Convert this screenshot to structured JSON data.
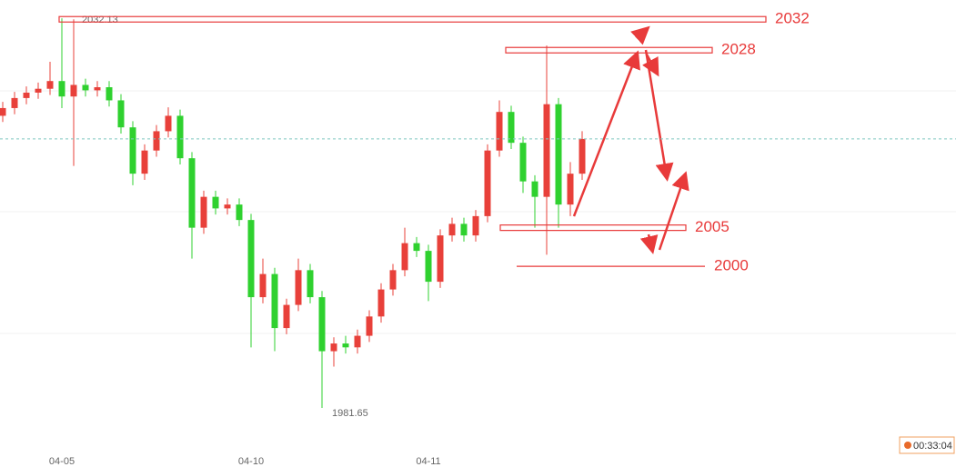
{
  "chart_data": {
    "type": "candlestick",
    "categories": [
      null,
      null,
      null,
      null,
      null,
      "04-05",
      null,
      null,
      null,
      null,
      null,
      null,
      null,
      null,
      null,
      null,
      null,
      null,
      null,
      null,
      null,
      "04-10",
      null,
      null,
      null,
      null,
      null,
      null,
      null,
      null,
      null,
      null,
      null,
      null,
      null,
      null,
      "04-11",
      null,
      null,
      null,
      null,
      null,
      null,
      null,
      null,
      null,
      null,
      null,
      null,
      null
    ],
    "open": [
      2019.5,
      2020.5,
      2021.8,
      2022.5,
      2023.0,
      2024.0,
      2022.0,
      2023.5,
      2022.8,
      2023.2,
      2021.5,
      2018.0,
      2012.0,
      2015.0,
      2017.5,
      2019.5,
      2014.0,
      2005.0,
      2009.0,
      2007.5,
      2008.0,
      2006.0,
      1996.0,
      1999.0,
      1992.0,
      1995.0,
      1999.5,
      1996.0,
      1989.0,
      1990.0,
      1989.5,
      1991.0,
      1993.5,
      1997.0,
      1999.5,
      2003.0,
      2002.0,
      1998.0,
      2004.0,
      2005.5,
      2004.0,
      2006.5,
      2015.0,
      2020.0,
      2016.0,
      2011.0,
      2009.0,
      2021.0,
      2008.0,
      2012.0
    ],
    "high": [
      2021.3,
      2022.6,
      2023.3,
      2023.8,
      2026.5,
      2032.13,
      2032.0,
      2024.3,
      2024.0,
      2024.0,
      2022.3,
      2018.8,
      2015.8,
      2018.3,
      2020.6,
      2020.3,
      2014.8,
      2009.8,
      2009.8,
      2008.8,
      2008.8,
      2006.8,
      2001.0,
      1999.8,
      1995.8,
      2001.0,
      2000.3,
      1996.8,
      1990.8,
      1991.0,
      1991.8,
      1994.3,
      1997.8,
      2000.3,
      2005.0,
      2003.8,
      2002.8,
      2004.8,
      2006.3,
      2006.3,
      2007.3,
      2015.8,
      2021.5,
      2020.8,
      2016.8,
      2011.8,
      2028.6,
      2021.8,
      2013.5,
      2017.5
    ],
    "low": [
      2018.7,
      2019.7,
      2021.0,
      2021.7,
      2022.2,
      2020.5,
      2013.0,
      2022.0,
      2022.0,
      2020.7,
      2017.2,
      2010.5,
      2011.2,
      2014.2,
      2016.7,
      2013.2,
      2001.0,
      2004.2,
      2006.7,
      2006.7,
      2005.2,
      1989.5,
      1995.2,
      1989.0,
      1991.2,
      1994.2,
      1995.2,
      1981.65,
      1987.0,
      1988.7,
      1988.7,
      1990.2,
      1992.7,
      1996.2,
      1998.7,
      2001.2,
      1995.5,
      1997.2,
      2003.2,
      2003.2,
      2003.2,
      2005.7,
      2014.2,
      2015.2,
      2009.5,
      2005.0,
      2001.5,
      2005.0,
      2006.5,
      2011.2
    ],
    "close": [
      2020.5,
      2021.8,
      2022.5,
      2023.0,
      2024.0,
      2022.0,
      2023.5,
      2022.8,
      2023.2,
      2021.5,
      2018.0,
      2012.0,
      2015.0,
      2017.5,
      2019.5,
      2014.0,
      2005.0,
      2009.0,
      2007.5,
      2008.0,
      2006.0,
      1996.0,
      1999.0,
      1992.0,
      1995.0,
      1999.5,
      1996.0,
      1989.0,
      1990.0,
      1989.5,
      1991.0,
      1993.5,
      1997.0,
      1999.5,
      2003.0,
      2002.0,
      1998.0,
      2004.0,
      2005.5,
      2004.0,
      2006.5,
      2015.0,
      2020.0,
      2016.0,
      2011.0,
      2009.0,
      2021.0,
      2008.0,
      2012.0,
      2016.5
    ],
    "up_color": "#e8403a",
    "down_color": "#2fd12f",
    "ylim": [
      1974.0,
      2034.5
    ],
    "levels": [
      2032,
      2028,
      2005,
      2000
    ],
    "level_color": "#e83a3a",
    "timer": "00:33:04"
  }
}
